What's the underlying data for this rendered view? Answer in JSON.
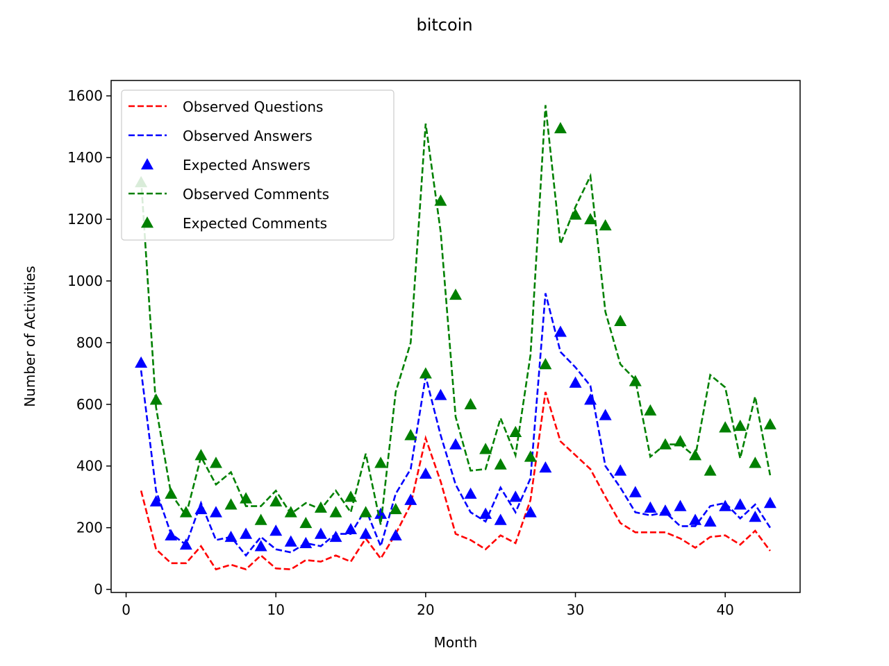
{
  "chart_data": {
    "type": "line",
    "title": "bitcoin",
    "xlabel": "Month",
    "ylabel": "Number of Activities",
    "xlim": [
      -1,
      45
    ],
    "ylim": [
      -10,
      1650
    ],
    "xticks": [
      0,
      10,
      20,
      30,
      40
    ],
    "yticks": [
      0,
      200,
      400,
      600,
      800,
      1000,
      1200,
      1400,
      1600
    ],
    "grid": false,
    "legend_position": "top-left",
    "x": [
      1,
      2,
      3,
      4,
      5,
      6,
      7,
      8,
      9,
      10,
      11,
      12,
      13,
      14,
      15,
      16,
      17,
      18,
      19,
      20,
      21,
      22,
      23,
      24,
      25,
      26,
      27,
      28,
      29,
      30,
      31,
      32,
      33,
      34,
      35,
      36,
      37,
      38,
      39,
      40,
      41,
      42,
      43
    ],
    "series": [
      {
        "name": "Observed Questions",
        "style": "dashed-line",
        "color": "#ff0000",
        "values": [
          320,
          130,
          85,
          85,
          140,
          65,
          80,
          65,
          110,
          68,
          65,
          95,
          90,
          110,
          90,
          165,
          100,
          180,
          275,
          490,
          350,
          180,
          160,
          130,
          175,
          150,
          290,
          640,
          480,
          435,
          390,
          300,
          215,
          185,
          185,
          185,
          165,
          135,
          170,
          175,
          145,
          190,
          125
        ]
      },
      {
        "name": "Observed Answers",
        "style": "dashed-line",
        "color": "#0000ff",
        "values": [
          710,
          320,
          180,
          145,
          280,
          160,
          170,
          110,
          170,
          130,
          120,
          150,
          140,
          180,
          180,
          260,
          140,
          310,
          390,
          690,
          500,
          340,
          250,
          220,
          330,
          250,
          360,
          960,
          770,
          720,
          660,
          400,
          330,
          250,
          240,
          250,
          205,
          205,
          270,
          280,
          230,
          275,
          200
        ]
      },
      {
        "name": "Expected Answers",
        "style": "triangle-markers",
        "color": "#0000ff",
        "values": [
          735,
          285,
          175,
          145,
          260,
          250,
          170,
          180,
          140,
          190,
          155,
          150,
          180,
          170,
          195,
          180,
          245,
          175,
          290,
          375,
          630,
          470,
          310,
          245,
          225,
          300,
          250,
          395,
          835,
          670,
          615,
          565,
          385,
          315,
          265,
          255,
          270,
          225,
          220,
          270,
          275,
          235,
          280
        ]
      },
      {
        "name": "Observed Comments",
        "style": "dashed-line",
        "color": "#008000",
        "values": [
          1330,
          590,
          310,
          240,
          430,
          340,
          380,
          270,
          270,
          320,
          245,
          280,
          260,
          320,
          250,
          440,
          210,
          640,
          800,
          1510,
          1160,
          560,
          385,
          390,
          555,
          435,
          760,
          1570,
          1120,
          1240,
          1340,
          900,
          730,
          680,
          430,
          470,
          470,
          430,
          695,
          655,
          425,
          625,
          370
        ]
      },
      {
        "name": "Expected Comments",
        "style": "triangle-markers",
        "color": "#008000",
        "values": [
          1320,
          615,
          310,
          250,
          435,
          410,
          275,
          295,
          225,
          285,
          250,
          215,
          265,
          250,
          300,
          250,
          410,
          260,
          500,
          700,
          1260,
          955,
          600,
          455,
          405,
          510,
          430,
          730,
          1495,
          1215,
          1200,
          1180,
          870,
          675,
          580,
          470,
          480,
          435,
          385,
          525,
          530,
          410,
          535
        ]
      }
    ]
  }
}
